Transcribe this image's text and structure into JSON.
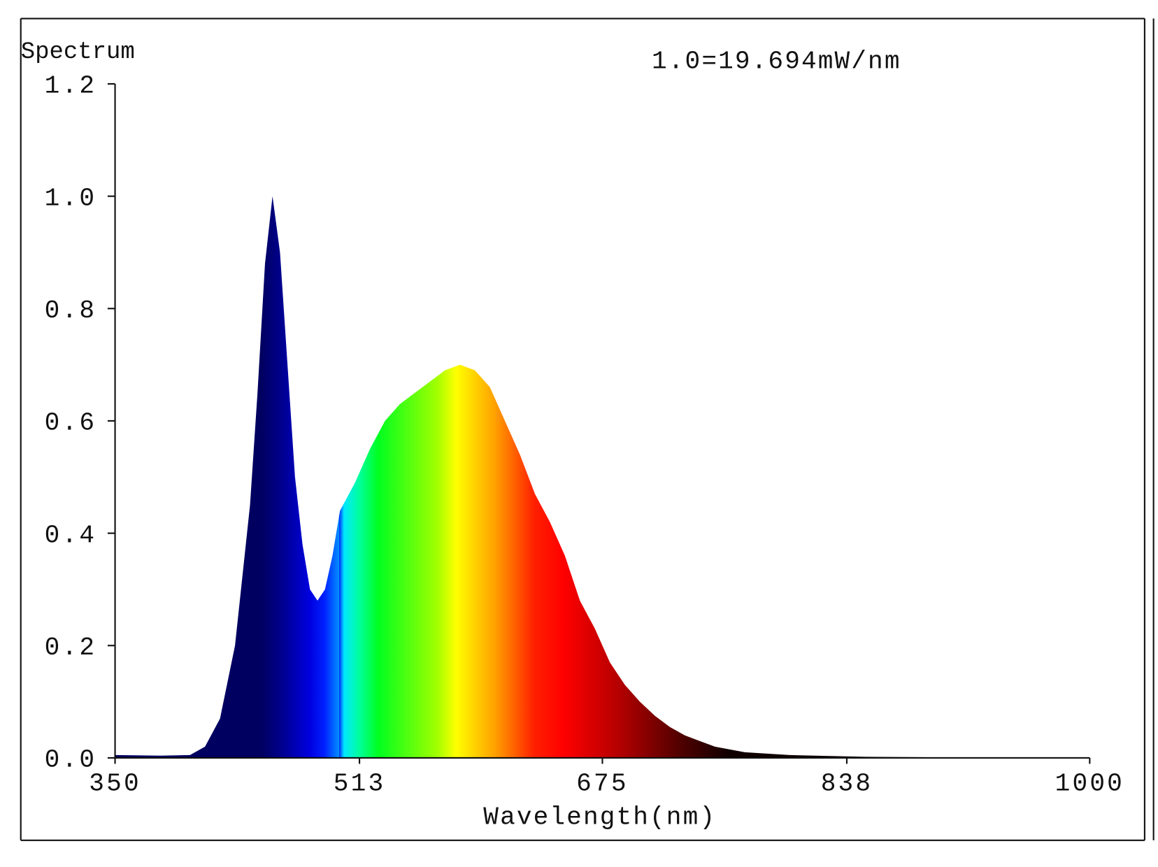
{
  "chart_data": {
    "type": "area",
    "title": "Spectrum",
    "annotation": "1.0=19.694mW/nm",
    "x_label": "Wavelength(nm)",
    "x": [
      350,
      380,
      400,
      410,
      420,
      430,
      440,
      445,
      450,
      455,
      460,
      465,
      470,
      475,
      480,
      485,
      490,
      495,
      500,
      510,
      520,
      530,
      540,
      550,
      560,
      570,
      580,
      590,
      600,
      610,
      620,
      630,
      640,
      650,
      660,
      670,
      680,
      690,
      700,
      710,
      720,
      730,
      740,
      750,
      770,
      800,
      850,
      900,
      1000
    ],
    "values": [
      0.005,
      0.004,
      0.005,
      0.02,
      0.07,
      0.2,
      0.45,
      0.65,
      0.88,
      1.0,
      0.9,
      0.7,
      0.5,
      0.38,
      0.3,
      0.28,
      0.3,
      0.36,
      0.44,
      0.49,
      0.55,
      0.6,
      0.63,
      0.65,
      0.67,
      0.69,
      0.7,
      0.69,
      0.66,
      0.6,
      0.54,
      0.47,
      0.42,
      0.36,
      0.28,
      0.23,
      0.17,
      0.13,
      0.1,
      0.075,
      0.055,
      0.04,
      0.03,
      0.02,
      0.01,
      0.005,
      0.002,
      0.001,
      0.001
    ],
    "xlim": [
      350,
      1000
    ],
    "ylim": [
      0,
      1.2
    ],
    "xticks": [
      350,
      513,
      675,
      838,
      1000
    ],
    "yticks": [
      {
        "value": 0,
        "label": "0.0"
      },
      0.2,
      0.4,
      0.6,
      0.8,
      {
        "value": 1,
        "label": "1.0"
      },
      1.2
    ]
  }
}
